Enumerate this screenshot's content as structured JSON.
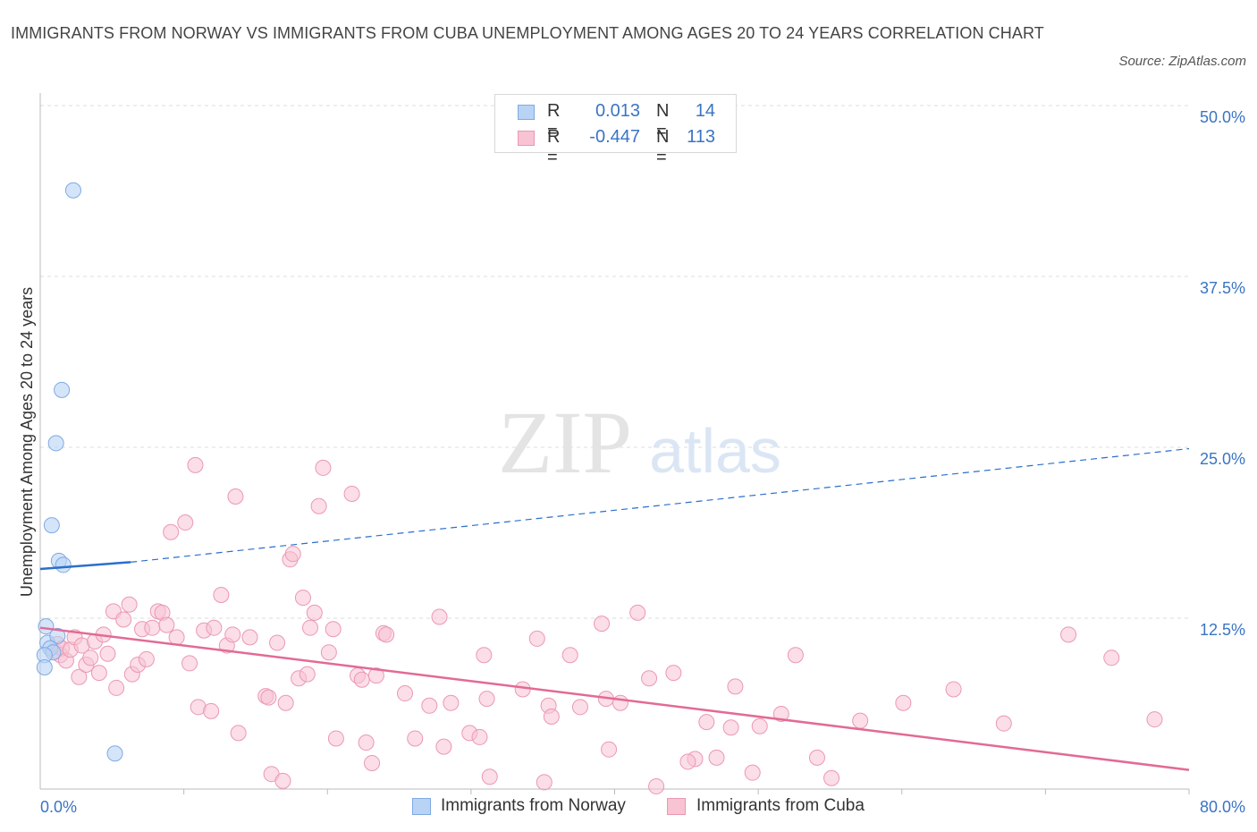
{
  "title": "IMMIGRANTS FROM NORWAY VS IMMIGRANTS FROM CUBA UNEMPLOYMENT AMONG AGES 20 TO 24 YEARS CORRELATION CHART",
  "source": "Source: ZipAtlas.com",
  "watermark": {
    "zip": "ZIP",
    "atlas": "atlas"
  },
  "legend": {
    "rows": [
      {
        "r_label": "R =",
        "r_value": "0.013",
        "n_label": "N =",
        "n_value": "14"
      },
      {
        "r_label": "R =",
        "r_value": "-0.447",
        "n_label": "N =",
        "n_value": "113"
      }
    ]
  },
  "colors": {
    "norway_fill": "#b9d3f5",
    "norway_stroke": "#7fa9e3",
    "norway_line": "#2a6fcc",
    "cuba_fill": "#f8c3d3",
    "cuba_stroke": "#eb98b3",
    "cuba_line": "#e26a96",
    "axis_label": "#3a74c4",
    "grid": "#dddddd"
  },
  "chart_data": {
    "type": "scatter",
    "title": "IMMIGRANTS FROM NORWAY VS IMMIGRANTS FROM CUBA UNEMPLOYMENT AMONG AGES 20 TO 24 YEARS CORRELATION CHART",
    "xlabel": "",
    "ylabel": "Unemployment Among Ages 20 to 24 years",
    "xlim": [
      0,
      80
    ],
    "ylim": [
      0,
      50
    ],
    "x_tick_labels": [
      "0.0%",
      "80.0%"
    ],
    "y_ticks": [
      12.5,
      25.0,
      37.5,
      50.0
    ],
    "y_tick_labels": [
      "12.5%",
      "25.0%",
      "37.5%",
      "50.0%"
    ],
    "grid": true,
    "legend_position": "top-center",
    "series": [
      {
        "name": "Immigrants from Norway",
        "r": 0.013,
        "n": 14,
        "points": [
          [
            2.3,
            43.8
          ],
          [
            1.5,
            29.2
          ],
          [
            1.1,
            25.3
          ],
          [
            0.8,
            19.3
          ],
          [
            1.3,
            16.7
          ],
          [
            1.6,
            16.4
          ],
          [
            0.4,
            11.9
          ],
          [
            0.5,
            10.7
          ],
          [
            1.2,
            11.2
          ],
          [
            0.7,
            10.3
          ],
          [
            0.9,
            10.0
          ],
          [
            0.3,
            9.8
          ],
          [
            0.3,
            8.9
          ],
          [
            5.2,
            2.6
          ]
        ],
        "trend_solid": {
          "x": [
            0,
            6.3
          ],
          "y": [
            16.1,
            16.6
          ]
        },
        "trend_dashed": {
          "x": [
            6.3,
            80
          ],
          "y": [
            16.6,
            24.9
          ]
        }
      },
      {
        "name": "Immigrants from Cuba",
        "r": -0.447,
        "n": 113,
        "points": [
          [
            1.0,
            10.1
          ],
          [
            1.2,
            10.6
          ],
          [
            1.4,
            9.8
          ],
          [
            1.5,
            10.3
          ],
          [
            1.8,
            9.4
          ],
          [
            2.1,
            10.2
          ],
          [
            2.4,
            11.1
          ],
          [
            2.7,
            8.2
          ],
          [
            2.9,
            10.5
          ],
          [
            3.2,
            9.1
          ],
          [
            3.5,
            9.6
          ],
          [
            3.8,
            10.8
          ],
          [
            4.1,
            8.5
          ],
          [
            4.4,
            11.3
          ],
          [
            4.7,
            9.9
          ],
          [
            5.1,
            13.0
          ],
          [
            5.3,
            7.4
          ],
          [
            5.8,
            12.4
          ],
          [
            6.2,
            13.5
          ],
          [
            6.4,
            8.4
          ],
          [
            6.8,
            9.1
          ],
          [
            7.1,
            11.7
          ],
          [
            7.4,
            9.5
          ],
          [
            7.8,
            11.8
          ],
          [
            8.2,
            13.0
          ],
          [
            8.5,
            12.9
          ],
          [
            8.8,
            12.0
          ],
          [
            9.1,
            18.8
          ],
          [
            9.5,
            11.1
          ],
          [
            10.1,
            19.5
          ],
          [
            10.4,
            9.2
          ],
          [
            10.8,
            23.7
          ],
          [
            11.0,
            6.0
          ],
          [
            11.4,
            11.6
          ],
          [
            11.9,
            5.7
          ],
          [
            12.1,
            11.8
          ],
          [
            12.6,
            14.2
          ],
          [
            13.0,
            10.5
          ],
          [
            13.4,
            11.3
          ],
          [
            13.6,
            21.4
          ],
          [
            13.8,
            4.1
          ],
          [
            14.6,
            11.1
          ],
          [
            15.7,
            6.8
          ],
          [
            15.9,
            6.7
          ],
          [
            16.1,
            1.1
          ],
          [
            16.5,
            10.7
          ],
          [
            16.9,
            0.6
          ],
          [
            17.1,
            6.3
          ],
          [
            17.4,
            16.8
          ],
          [
            17.6,
            17.2
          ],
          [
            18.0,
            8.1
          ],
          [
            18.3,
            14.0
          ],
          [
            18.6,
            8.4
          ],
          [
            18.8,
            11.8
          ],
          [
            19.1,
            12.9
          ],
          [
            19.4,
            20.7
          ],
          [
            19.7,
            23.5
          ],
          [
            20.1,
            10.0
          ],
          [
            20.4,
            11.7
          ],
          [
            20.6,
            3.7
          ],
          [
            21.7,
            21.6
          ],
          [
            22.1,
            8.3
          ],
          [
            22.4,
            8.0
          ],
          [
            22.7,
            3.4
          ],
          [
            23.1,
            1.9
          ],
          [
            23.4,
            8.3
          ],
          [
            23.9,
            11.4
          ],
          [
            24.1,
            11.3
          ],
          [
            25.4,
            7.0
          ],
          [
            26.1,
            3.7
          ],
          [
            27.1,
            6.1
          ],
          [
            27.8,
            12.6
          ],
          [
            28.1,
            3.1
          ],
          [
            28.6,
            6.3
          ],
          [
            29.9,
            4.1
          ],
          [
            30.6,
            3.8
          ],
          [
            30.9,
            9.8
          ],
          [
            31.1,
            6.6
          ],
          [
            31.3,
            0.9
          ],
          [
            33.6,
            7.3
          ],
          [
            34.6,
            11.0
          ],
          [
            35.1,
            0.5
          ],
          [
            35.4,
            6.1
          ],
          [
            35.6,
            5.3
          ],
          [
            36.9,
            9.8
          ],
          [
            37.6,
            6.0
          ],
          [
            39.1,
            12.1
          ],
          [
            39.4,
            6.6
          ],
          [
            39.6,
            2.9
          ],
          [
            40.4,
            6.3
          ],
          [
            41.6,
            12.9
          ],
          [
            42.4,
            8.1
          ],
          [
            42.9,
            0.2
          ],
          [
            44.1,
            8.5
          ],
          [
            45.6,
            2.2
          ],
          [
            46.4,
            4.9
          ],
          [
            47.1,
            2.3
          ],
          [
            48.1,
            4.5
          ],
          [
            48.4,
            7.5
          ],
          [
            49.6,
            1.2
          ],
          [
            50.1,
            4.6
          ],
          [
            51.6,
            5.5
          ],
          [
            52.6,
            9.8
          ],
          [
            54.1,
            2.3
          ],
          [
            55.1,
            0.8
          ],
          [
            57.1,
            5.0
          ],
          [
            60.1,
            6.3
          ],
          [
            63.6,
            7.3
          ],
          [
            67.1,
            4.8
          ],
          [
            71.6,
            11.3
          ],
          [
            74.6,
            9.6
          ],
          [
            77.6,
            5.1
          ],
          [
            45.1,
            2.0
          ]
        ],
        "trend": {
          "x": [
            0,
            80
          ],
          "y": [
            11.8,
            1.4
          ]
        }
      }
    ]
  },
  "bottom_legend": {
    "items": [
      {
        "label": "Immigrants from Norway"
      },
      {
        "label": "Immigrants from Cuba"
      }
    ]
  }
}
